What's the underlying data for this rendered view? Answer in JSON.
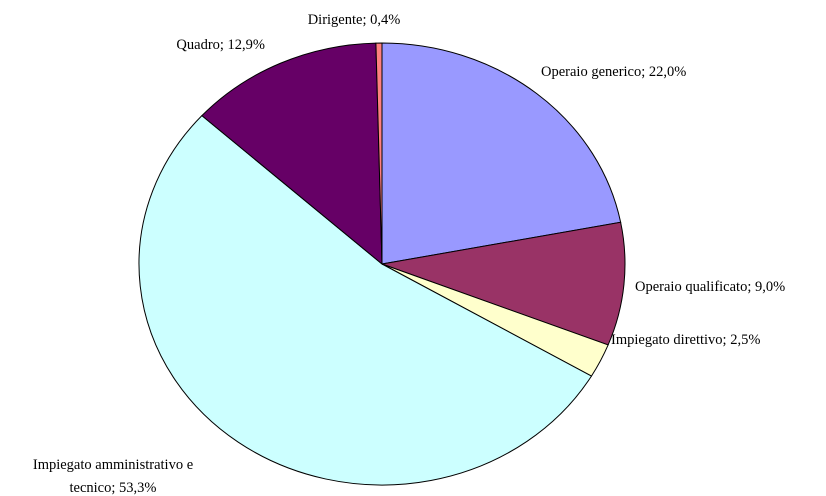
{
  "chart_data": {
    "type": "pie",
    "categories": [
      "Operaio generico",
      "Operaio qualificato",
      "Impiegato direttivo",
      "Impiegato amministrativo e tecnico",
      "Quadro",
      "Dirigente"
    ],
    "values": [
      22.0,
      9.0,
      2.5,
      53.3,
      12.9,
      0.4
    ],
    "value_labels": [
      "Operaio generico; 22,0%",
      "Operaio qualificato; 9,0%",
      "Impiegato direttivo; 2,5%",
      "Impiegato amministrativo e\ntecnico; 53,3%",
      "Quadro; 12,9%",
      "Dirigente; 0,4%"
    ],
    "colors": [
      "#9999ff",
      "#993366",
      "#ffffcc",
      "#ccffff",
      "#660066",
      "#ff8080"
    ]
  }
}
